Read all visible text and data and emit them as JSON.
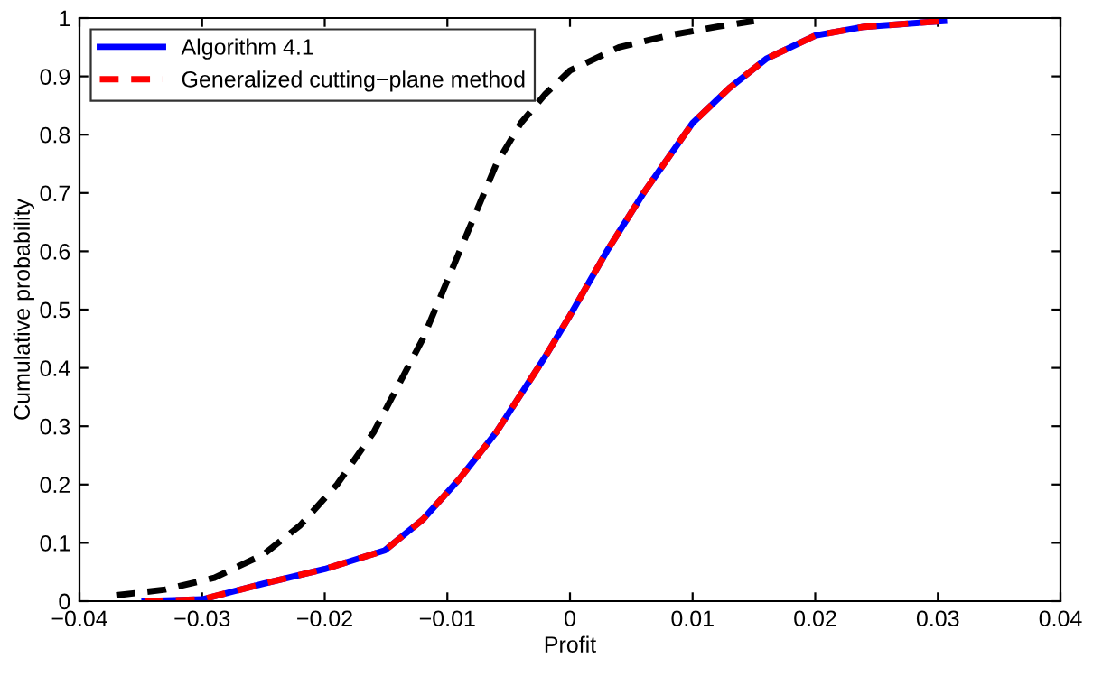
{
  "chart_data": {
    "type": "line",
    "xlabel": "Profit",
    "ylabel": "Cumulative probability",
    "xlim": [
      -0.04,
      0.04
    ],
    "ylim": [
      0,
      1
    ],
    "xticks": [
      {
        "value": -0.04,
        "label": "−0.04"
      },
      {
        "value": -0.03,
        "label": "−0.03"
      },
      {
        "value": -0.02,
        "label": "−0.02"
      },
      {
        "value": -0.01,
        "label": "−0.01"
      },
      0,
      0.01,
      0.02,
      0.03,
      0.04
    ],
    "yticks": [
      0,
      0.1,
      0.2,
      0.3,
      0.4,
      0.5,
      0.6,
      0.7,
      0.8,
      0.9,
      1
    ],
    "legend": "top left",
    "grid": false,
    "marker": "none",
    "series": [
      {
        "name": "Algorithm 4.1",
        "color": "#0000ff",
        "line_style": "solid",
        "x": [
          -0.0347,
          -0.03,
          -0.025,
          -0.02,
          -0.0151,
          -0.012,
          -0.009,
          -0.006,
          -0.004,
          -0.002,
          0,
          0.003,
          0.006,
          0.01,
          0.013,
          0.016,
          0.02,
          0.024,
          0.0305
        ],
        "values": [
          0,
          0.003,
          0.03,
          0.055,
          0.087,
          0.14,
          0.21,
          0.29,
          0.355,
          0.42,
          0.49,
          0.6,
          0.7,
          0.82,
          0.88,
          0.93,
          0.97,
          0.985,
          0.995
        ]
      },
      {
        "color": "#000000",
        "line_style": "dashed",
        "x": [
          -0.037,
          -0.033,
          -0.029,
          -0.025,
          -0.022,
          -0.019,
          -0.016,
          -0.014,
          -0.012,
          -0.01,
          -0.008,
          -0.006,
          -0.004,
          -0.002,
          0,
          0.004,
          0.008,
          0.012,
          0.015
        ],
        "values": [
          0.01,
          0.02,
          0.04,
          0.08,
          0.13,
          0.2,
          0.29,
          0.37,
          0.45,
          0.55,
          0.65,
          0.75,
          0.82,
          0.87,
          0.91,
          0.95,
          0.97,
          0.985,
          0.995
        ]
      },
      {
        "name": "Generalized cutting−plane method",
        "color": "#ff0000",
        "line_style": "dashed",
        "x": [
          -0.0347,
          -0.03,
          -0.025,
          -0.02,
          -0.0151,
          -0.012,
          -0.009,
          -0.006,
          -0.004,
          -0.002,
          0,
          0.003,
          0.006,
          0.01,
          0.013,
          0.016,
          0.02,
          0.024,
          0.0305
        ],
        "values": [
          0,
          0.003,
          0.03,
          0.055,
          0.087,
          0.14,
          0.21,
          0.29,
          0.355,
          0.42,
          0.49,
          0.6,
          0.7,
          0.82,
          0.88,
          0.93,
          0.97,
          0.985,
          0.995
        ]
      }
    ]
  }
}
